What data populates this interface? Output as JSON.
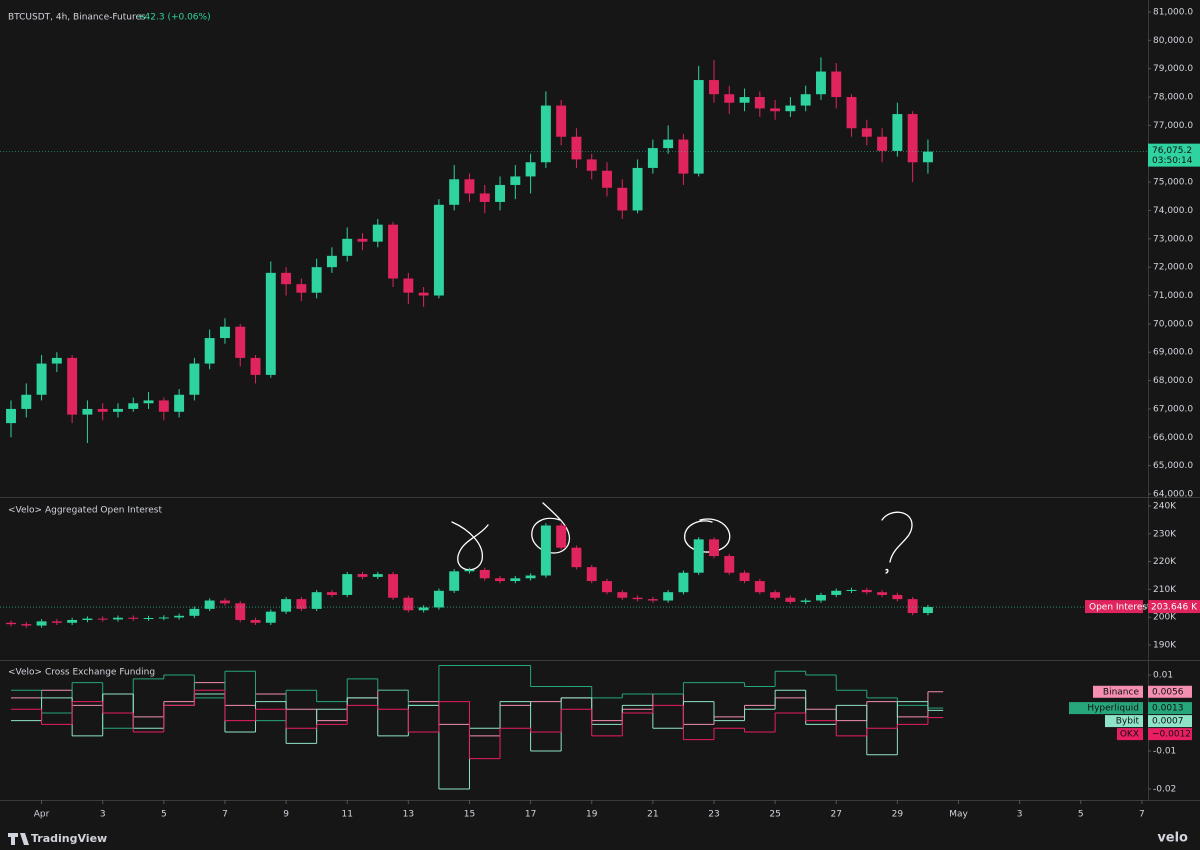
{
  "chart_data": [
    {
      "type": "candlestick",
      "title": "BTCUSDT, 4h, Binance-Futures",
      "change": "+42.3 (+0.06%)",
      "up_color": "#2ed3a0",
      "down_color": "#e0245e",
      "x": [
        -1,
        -0.5,
        0,
        0.5,
        1,
        1.5,
        2,
        2.5,
        3,
        3.5,
        4,
        4.5,
        5,
        5.5,
        6,
        6.5,
        7,
        7.5,
        8,
        8.5,
        9,
        9.5,
        10,
        10.5,
        11,
        11.5,
        12,
        12.5,
        13,
        13.5,
        14,
        14.5,
        15,
        15.5,
        16,
        16.5,
        17,
        17.5,
        18,
        18.5,
        19,
        19.5,
        20,
        20.5,
        21,
        21.5,
        22,
        22.5,
        23,
        23.5,
        24,
        24.5,
        25,
        25.5,
        26,
        26.5,
        27,
        27.5,
        28,
        28.5,
        29
      ],
      "ohlc": [
        [
          66500,
          67300,
          66000,
          67000
        ],
        [
          67000,
          67900,
          66700,
          67500
        ],
        [
          67500,
          68900,
          67300,
          68600
        ],
        [
          68600,
          69000,
          68300,
          68800
        ],
        [
          68800,
          68900,
          66500,
          66800
        ],
        [
          66800,
          67300,
          65800,
          67000
        ],
        [
          67000,
          67200,
          66600,
          66900
        ],
        [
          66900,
          67200,
          66700,
          67000
        ],
        [
          67000,
          67400,
          66900,
          67200
        ],
        [
          67200,
          67600,
          67000,
          67300
        ],
        [
          67300,
          67400,
          66600,
          66900
        ],
        [
          66900,
          67700,
          66700,
          67500
        ],
        [
          67500,
          68800,
          67300,
          68600
        ],
        [
          68600,
          69800,
          68400,
          69500
        ],
        [
          69500,
          70200,
          69300,
          69900
        ],
        [
          69900,
          70000,
          68500,
          68800
        ],
        [
          68800,
          68900,
          67900,
          68200
        ],
        [
          68200,
          72200,
          68100,
          71800
        ],
        [
          71800,
          72000,
          71000,
          71400
        ],
        [
          71400,
          71600,
          70800,
          71100
        ],
        [
          71100,
          72300,
          70900,
          72000
        ],
        [
          72000,
          72700,
          71800,
          72400
        ],
        [
          72400,
          73400,
          72200,
          73000
        ],
        [
          73000,
          73200,
          72600,
          72900
        ],
        [
          72900,
          73700,
          72700,
          73500
        ],
        [
          73500,
          73600,
          71300,
          71600
        ],
        [
          71600,
          71800,
          70700,
          71100
        ],
        [
          71100,
          71300,
          70600,
          71000
        ],
        [
          71000,
          74400,
          70900,
          74200
        ],
        [
          74200,
          75600,
          74000,
          75100
        ],
        [
          75100,
          75300,
          74300,
          74600
        ],
        [
          74600,
          74900,
          73900,
          74300
        ],
        [
          74300,
          75200,
          74000,
          74900
        ],
        [
          74900,
          75600,
          74400,
          75200
        ],
        [
          75200,
          76000,
          74600,
          75700
        ],
        [
          75700,
          78200,
          75500,
          77700
        ],
        [
          77700,
          77900,
          76300,
          76600
        ],
        [
          76600,
          76900,
          75500,
          75800
        ],
        [
          75800,
          76000,
          75100,
          75400
        ],
        [
          75400,
          75700,
          74500,
          74800
        ],
        [
          74800,
          75100,
          73700,
          74000
        ],
        [
          74000,
          75800,
          73900,
          75500
        ],
        [
          75500,
          76500,
          75300,
          76200
        ],
        [
          76200,
          77000,
          76000,
          76500
        ],
        [
          76500,
          76700,
          74900,
          75300
        ],
        [
          75300,
          79100,
          75200,
          78600
        ],
        [
          78600,
          79300,
          77800,
          78100
        ],
        [
          78100,
          78400,
          77400,
          77800
        ],
        [
          77800,
          78300,
          77500,
          78000
        ],
        [
          78000,
          78200,
          77300,
          77600
        ],
        [
          77600,
          77900,
          77200,
          77500
        ],
        [
          77500,
          78000,
          77300,
          77700
        ],
        [
          77700,
          78400,
          77500,
          78100
        ],
        [
          78100,
          79400,
          77900,
          78900
        ],
        [
          78900,
          79200,
          77600,
          78000
        ],
        [
          78000,
          78100,
          76600,
          76900
        ],
        [
          76900,
          77200,
          76300,
          76600
        ],
        [
          76600,
          76900,
          75700,
          76100
        ],
        [
          76100,
          77800,
          75900,
          77400
        ],
        [
          77400,
          77500,
          75000,
          75700
        ],
        [
          75700,
          76500,
          75300,
          76075.2
        ]
      ],
      "ylim": [
        63894,
        81423
      ],
      "yticks": [
        {
          "value": 64000,
          "label": "64,000.0"
        },
        {
          "value": 65000,
          "label": "65,000.0"
        },
        {
          "value": 66000,
          "label": "66,000.0"
        },
        {
          "value": 67000,
          "label": "67,000.0"
        },
        {
          "value": 68000,
          "label": "68,000.0"
        },
        {
          "value": 69000,
          "label": "69,000.0"
        },
        {
          "value": 70000,
          "label": "70,000.0"
        },
        {
          "value": 71000,
          "label": "71,000.0"
        },
        {
          "value": 72000,
          "label": "72,000.0"
        },
        {
          "value": 73000,
          "label": "73,000.0"
        },
        {
          "value": 74000,
          "label": "74,000.0"
        },
        {
          "value": 75000,
          "label": "75,000.0"
        },
        {
          "value": 76000,
          "label": "76,000.0"
        },
        {
          "value": 77000,
          "label": "77,000.0"
        },
        {
          "value": 78000,
          "label": "78,000.0"
        },
        {
          "value": 79000,
          "label": "79,000.0"
        },
        {
          "value": 80000,
          "label": "80,000.0"
        },
        {
          "value": 81000,
          "label": "81,000.0"
        }
      ],
      "last_label": "76,075.2",
      "countdown": "03:50:14"
    },
    {
      "type": "candlestick",
      "title": "<Velo> Aggregated Open Interest",
      "up_color": "#2ed3a0",
      "down_color": "#e0245e",
      "series_name": "Open Interest",
      "last_label": "203.646 K",
      "x": [
        -1,
        -0.5,
        0,
        0.5,
        1,
        1.5,
        2,
        2.5,
        3,
        3.5,
        4,
        4.5,
        5,
        5.5,
        6,
        6.5,
        7,
        7.5,
        8,
        8.5,
        9,
        9.5,
        10,
        10.5,
        11,
        11.5,
        12,
        12.5,
        13,
        13.5,
        14,
        14.5,
        15,
        15.5,
        16,
        16.5,
        17,
        17.5,
        18,
        18.5,
        19,
        19.5,
        20,
        20.5,
        21,
        21.5,
        22,
        22.5,
        23,
        23.5,
        24,
        24.5,
        25,
        25.5,
        26,
        26.5,
        27,
        27.5,
        28,
        28.5,
        29
      ],
      "ohlc": [
        [
          198000,
          198800,
          196700,
          197500
        ],
        [
          197500,
          198300,
          196200,
          197000
        ],
        [
          197000,
          199300,
          196200,
          198500
        ],
        [
          198500,
          199300,
          197200,
          198000
        ],
        [
          198000,
          199800,
          197200,
          199000
        ],
        [
          199000,
          200300,
          198200,
          199500
        ],
        [
          199500,
          200300,
          198400,
          199200
        ],
        [
          199200,
          200600,
          198400,
          199800
        ],
        [
          199800,
          200600,
          198700,
          199500
        ],
        [
          199500,
          200500,
          198700,
          199700
        ],
        [
          199700,
          200700,
          198900,
          199900
        ],
        [
          199900,
          201300,
          199100,
          200500
        ],
        [
          200500,
          203800,
          199700,
          203000
        ],
        [
          203000,
          206800,
          202200,
          206000
        ],
        [
          206000,
          206800,
          204200,
          205000
        ],
        [
          205000,
          205800,
          198200,
          199000
        ],
        [
          199000,
          199800,
          197200,
          198000
        ],
        [
          198000,
          202800,
          197200,
          202000
        ],
        [
          202000,
          207300,
          201200,
          206500
        ],
        [
          206500,
          207300,
          202200,
          203000
        ],
        [
          203000,
          209800,
          202200,
          209000
        ],
        [
          209000,
          209800,
          207200,
          208000
        ],
        [
          208000,
          216300,
          207200,
          215500
        ],
        [
          215500,
          216300,
          213700,
          214500
        ],
        [
          214500,
          216300,
          213700,
          215500
        ],
        [
          215500,
          216300,
          206200,
          207000
        ],
        [
          207000,
          207800,
          201700,
          202500
        ],
        [
          202500,
          204300,
          201700,
          203500
        ],
        [
          203500,
          210300,
          202700,
          209500
        ],
        [
          209500,
          217300,
          208700,
          216500
        ],
        [
          216500,
          217800,
          215700,
          217000
        ],
        [
          217000,
          217800,
          213200,
          214000
        ],
        [
          214000,
          214800,
          212200,
          213000
        ],
        [
          213000,
          214800,
          212200,
          214000
        ],
        [
          214000,
          215800,
          213200,
          215000
        ],
        [
          215000,
          233800,
          214200,
          233000
        ],
        [
          233000,
          233800,
          224200,
          225000
        ],
        [
          225000,
          225800,
          217200,
          218000
        ],
        [
          218000,
          218800,
          212200,
          213000
        ],
        [
          213000,
          213800,
          208200,
          209000
        ],
        [
          209000,
          209800,
          206200,
          207000
        ],
        [
          207000,
          207800,
          205700,
          206500
        ],
        [
          206500,
          207300,
          205200,
          206000
        ],
        [
          206000,
          209800,
          205200,
          209000
        ],
        [
          209000,
          216800,
          208200,
          216000
        ],
        [
          216000,
          228800,
          215200,
          228000
        ],
        [
          228000,
          228800,
          221200,
          222000
        ],
        [
          222000,
          222800,
          215200,
          216000
        ],
        [
          216000,
          216800,
          212200,
          213000
        ],
        [
          213000,
          213800,
          208200,
          209000
        ],
        [
          209000,
          209800,
          206200,
          207000
        ],
        [
          207000,
          207800,
          204700,
          205500
        ],
        [
          205500,
          206800,
          204700,
          206000
        ],
        [
          206000,
          208800,
          205200,
          208000
        ],
        [
          208000,
          210300,
          207200,
          209500
        ],
        [
          209500,
          210600,
          208700,
          209800
        ],
        [
          209800,
          210600,
          208200,
          209000
        ],
        [
          209000,
          209800,
          207200,
          208000
        ],
        [
          208000,
          208800,
          205700,
          206500
        ],
        [
          206500,
          207300,
          200700,
          201500
        ],
        [
          201500,
          204400,
          200700,
          203646
        ]
      ],
      "ylim": [
        184604,
        242878
      ],
      "yticks": [
        {
          "value": 190000,
          "label": "190K"
        },
        {
          "value": 200000,
          "label": "200K"
        },
        {
          "value": 210000,
          "label": "210K"
        },
        {
          "value": 220000,
          "label": "220K"
        },
        {
          "value": 230000,
          "label": "230K"
        },
        {
          "value": 240000,
          "label": "240K"
        }
      ]
    },
    {
      "type": "step",
      "title": "<Velo> Cross Exchange Funding",
      "x": [
        -1,
        0,
        1,
        2,
        3,
        4,
        5,
        6,
        7,
        8,
        9,
        10,
        11,
        12,
        13,
        14,
        15,
        16,
        17,
        18,
        19,
        20,
        21,
        22,
        23,
        24,
        25,
        26,
        27,
        28,
        29
      ],
      "series": [
        {
          "name": "Binance",
          "color": "#f48fb1",
          "value_label": "0.0056",
          "values": [
            0.004,
            0.006,
            0.002,
            0.005,
            -0.001,
            0.003,
            0.008,
            0.002,
            0.005,
            0.001,
            -0.002,
            0.004,
            0.006,
            0.003,
            -0.003,
            -0.006,
            0.002,
            0.003,
            0.004,
            -0.002,
            0.001,
            0.005,
            -0.003,
            -0.001,
            0.002,
            0.004,
            0.001,
            -0.002,
            0.003,
            -0.001,
            0.0056
          ]
        },
        {
          "name": "Hyperliquid",
          "color": "#26a67a",
          "value_label": "0.0013",
          "values": [
            0.006,
            0.0,
            0.008,
            -0.004,
            0.009,
            0.01,
            0.004,
            0.011,
            -0.002,
            0.006,
            0.003,
            0.009,
            0.006,
            0.002,
            0.0125,
            0.0125,
            0.0125,
            0.007,
            0.007,
            0.004,
            0.005,
            0.005,
            0.008,
            0.008,
            0.007,
            0.011,
            0.01,
            0.006,
            0.004,
            0.002,
            0.0013
          ]
        },
        {
          "name": "Bybit",
          "color": "#8fe3c8",
          "value_label": "0.0007",
          "values": [
            -0.002,
            0.004,
            -0.006,
            0.005,
            -0.004,
            0.002,
            0.005,
            -0.005,
            0.003,
            -0.008,
            0.001,
            0.004,
            -0.006,
            0.002,
            -0.02,
            -0.004,
            0.003,
            -0.01,
            0.004,
            -0.003,
            0.002,
            -0.004,
            0.003,
            -0.002,
            0.001,
            0.006,
            -0.003,
            0.002,
            -0.011,
            0.003,
            0.0007
          ]
        },
        {
          "name": "OKX",
          "color": "#e91e63",
          "value_label": "−0.0012",
          "values": [
            0.001,
            -0.003,
            0.003,
            0.0,
            -0.005,
            0.002,
            0.006,
            -0.002,
            0.001,
            -0.004,
            -0.003,
            0.002,
            0.001,
            -0.005,
            0.003,
            -0.012,
            -0.004,
            -0.005,
            0.001,
            -0.006,
            0.0,
            0.002,
            -0.007,
            -0.004,
            -0.005,
            0.0,
            -0.002,
            -0.006,
            -0.004,
            -0.003,
            -0.0012
          ]
        }
      ],
      "ylim": [
        -0.0229,
        0.0137
      ],
      "yticks": [
        0.01,
        -0.01,
        -0.02
      ]
    }
  ],
  "xaxis": {
    "xlim": [
      -1.36,
      36.2
    ],
    "xticks": [
      {
        "value": 0,
        "label": "Apr"
      },
      {
        "value": 2,
        "label": "3"
      },
      {
        "value": 4,
        "label": "5"
      },
      {
        "value": 6,
        "label": "7"
      },
      {
        "value": 8,
        "label": "9"
      },
      {
        "value": 10,
        "label": "11"
      },
      {
        "value": 12,
        "label": "13"
      },
      {
        "value": 14,
        "label": "15"
      },
      {
        "value": 16,
        "label": "17"
      },
      {
        "value": 18,
        "label": "19"
      },
      {
        "value": 20,
        "label": "21"
      },
      {
        "value": 22,
        "label": "23"
      },
      {
        "value": 24,
        "label": "25"
      },
      {
        "value": 26,
        "label": "27"
      },
      {
        "value": 28,
        "label": "29"
      },
      {
        "value": 30,
        "label": "May"
      },
      {
        "value": 32,
        "label": "3"
      },
      {
        "value": 34,
        "label": "5"
      },
      {
        "value": 36,
        "label": "7"
      }
    ]
  },
  "footer": {
    "brand": "TradingView",
    "source": "velo"
  }
}
